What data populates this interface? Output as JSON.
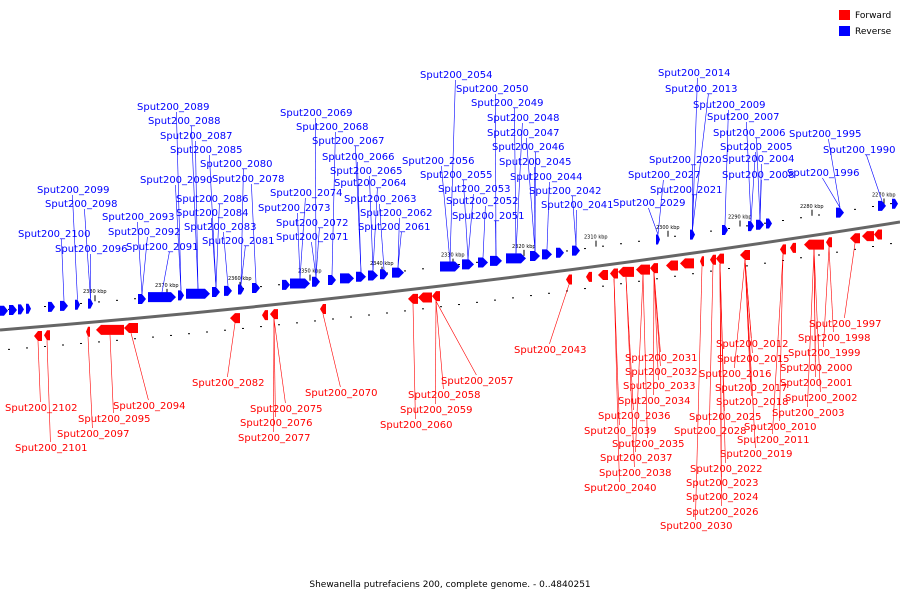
{
  "caption": "Shewanella putrefaciens 200, complete genome. - 0..4840251",
  "legend": [
    {
      "label": "Forward",
      "color": "#ff0000"
    },
    {
      "label": "Reverse",
      "color": "#0000ff"
    }
  ],
  "ticks": [
    "2270 kbp",
    "2280 kbp",
    "2290 kbp",
    "2300 kbp",
    "2310 kbp",
    "2320 kbp",
    "2330 kbp",
    "2340 kbp",
    "2350 kbp",
    "2360 kbp",
    "2370 kbp",
    "2380 kbp"
  ],
  "reverse_labels": [
    "Sput200_2054",
    "Sput200_2050",
    "Sput200_2049",
    "Sput200_2048",
    "Sput200_2047",
    "Sput200_2046",
    "Sput200_2045",
    "Sput200_2044",
    "Sput200_2042",
    "Sput200_2041",
    "Sput200_2056",
    "Sput200_2055",
    "Sput200_2053",
    "Sput200_2052",
    "Sput200_2051",
    "Sput200_2069",
    "Sput200_2068",
    "Sput200_2067",
    "Sput200_2066",
    "Sput200_2065",
    "Sput200_2064",
    "Sput200_2063",
    "Sput200_2062",
    "Sput200_2061",
    "Sput200_2074",
    "Sput200_2073",
    "Sput200_2072",
    "Sput200_2071",
    "Sput200_2089",
    "Sput200_2088",
    "Sput200_2087",
    "Sput200_2085",
    "Sput200_2080",
    "Sput200_2090",
    "Sput200_2078",
    "Sput200_2086",
    "Sput200_2084",
    "Sput200_2083",
    "Sput200_2081",
    "Sput200_2093",
    "Sput200_2092",
    "Sput200_2091",
    "Sput200_2099",
    "Sput200_2098",
    "Sput200_2100",
    "Sput200_2096",
    "Sput200_2014",
    "Sput200_2013",
    "Sput200_2009",
    "Sput200_2007",
    "Sput200_2006",
    "Sput200_2005",
    "Sput200_2004",
    "Sput200_2020",
    "Sput200_2027",
    "Sput200_2008",
    "Sput200_2021",
    "Sput200_2029",
    "Sput200_1995",
    "Sput200_1990",
    "Sput200_1996"
  ],
  "forward_labels": [
    "Sput200_2102",
    "Sput200_2101",
    "Sput200_2095",
    "Sput200_2097",
    "Sput200_2094",
    "Sput200_2082",
    "Sput200_2075",
    "Sput200_2076",
    "Sput200_2077",
    "Sput200_2070",
    "Sput200_2058",
    "Sput200_2059",
    "Sput200_2060",
    "Sput200_2057",
    "Sput200_2043",
    "Sput200_2031",
    "Sput200_2032",
    "Sput200_2033",
    "Sput200_2034",
    "Sput200_2036",
    "Sput200_2039",
    "Sput200_2035",
    "Sput200_2037",
    "Sput200_2038",
    "Sput200_2040",
    "Sput200_2012",
    "Sput200_2015",
    "Sput200_2016",
    "Sput200_2017",
    "Sput200_2018",
    "Sput200_2025",
    "Sput200_2028",
    "Sput200_2019",
    "Sput200_2022",
    "Sput200_2023",
    "Sput200_2024",
    "Sput200_2026",
    "Sput200_2030",
    "Sput200_1997",
    "Sput200_1998",
    "Sput200_1999",
    "Sput200_2000",
    "Sput200_2001",
    "Sput200_2002",
    "Sput200_2003",
    "Sput200_2010",
    "Sput200_2011"
  ]
}
